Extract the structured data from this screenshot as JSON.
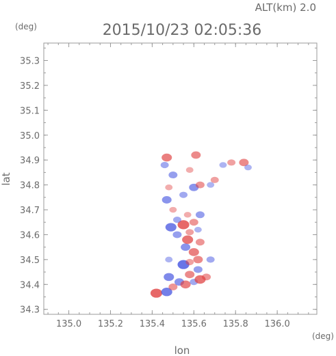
{
  "header": {
    "altitude_label": "ALT(km) 2.0",
    "timestamp": "2015/10/23 02:05:36"
  },
  "chart_data": {
    "type": "scatter",
    "title": "2015/10/23 02:05:36",
    "xlabel": "lon",
    "ylabel": "lat",
    "x_unit": "(deg)",
    "y_unit": "(deg)",
    "xlim": [
      134.88,
      136.19
    ],
    "ylim": [
      34.28,
      35.37
    ],
    "x_ticks": [
      "135.0",
      "135.2",
      "135.4",
      "135.6",
      "135.8",
      "136.0"
    ],
    "y_ticks": [
      "34.3",
      "34.4",
      "34.5",
      "34.6",
      "34.7",
      "34.8",
      "34.9",
      "35.0",
      "35.1",
      "35.2",
      "35.3"
    ],
    "grid": false,
    "colors": {
      "positive": "#e04040",
      "negative": "#4050e0",
      "axis": "#999999",
      "text": "#6a6a6a"
    },
    "series": [
      {
        "values": [
          {
            "lon": 135.42,
            "lat": 34.365,
            "v": 0.9
          },
          {
            "lon": 135.47,
            "lat": 34.37,
            "v": -0.8
          },
          {
            "lon": 135.5,
            "lat": 34.39,
            "v": 0.5
          },
          {
            "lon": 135.53,
            "lat": 34.41,
            "v": -0.6
          },
          {
            "lon": 135.56,
            "lat": 34.4,
            "v": 0.7
          },
          {
            "lon": 135.6,
            "lat": 34.41,
            "v": -0.4
          },
          {
            "lon": 135.63,
            "lat": 34.42,
            "v": 0.8
          },
          {
            "lon": 135.66,
            "lat": 34.43,
            "v": 0.5
          },
          {
            "lon": 135.48,
            "lat": 34.43,
            "v": -0.7
          },
          {
            "lon": 135.58,
            "lat": 34.44,
            "v": 0.6
          },
          {
            "lon": 135.62,
            "lat": 34.46,
            "v": -0.5
          },
          {
            "lon": 135.55,
            "lat": 34.48,
            "v": -0.9
          },
          {
            "lon": 135.58,
            "lat": 34.49,
            "v": 0.4
          },
          {
            "lon": 135.62,
            "lat": 34.5,
            "v": 0.6
          },
          {
            "lon": 135.68,
            "lat": 34.5,
            "v": -0.4
          },
          {
            "lon": 135.48,
            "lat": 34.5,
            "v": -0.3
          },
          {
            "lon": 135.6,
            "lat": 34.53,
            "v": 0.7
          },
          {
            "lon": 135.56,
            "lat": 34.55,
            "v": -0.6
          },
          {
            "lon": 135.63,
            "lat": 34.57,
            "v": 0.5
          },
          {
            "lon": 135.57,
            "lat": 34.58,
            "v": 0.8
          },
          {
            "lon": 135.52,
            "lat": 34.6,
            "v": -0.5
          },
          {
            "lon": 135.58,
            "lat": 34.61,
            "v": 0.4
          },
          {
            "lon": 135.62,
            "lat": 34.62,
            "v": -0.3
          },
          {
            "lon": 135.49,
            "lat": 34.63,
            "v": -0.8
          },
          {
            "lon": 135.55,
            "lat": 34.64,
            "v": 0.9
          },
          {
            "lon": 135.6,
            "lat": 34.65,
            "v": 0.5
          },
          {
            "lon": 135.52,
            "lat": 34.66,
            "v": -0.4
          },
          {
            "lon": 135.57,
            "lat": 34.68,
            "v": 0.3
          },
          {
            "lon": 135.63,
            "lat": 34.68,
            "v": -0.5
          },
          {
            "lon": 135.5,
            "lat": 34.7,
            "v": 0.3
          },
          {
            "lon": 135.47,
            "lat": 34.74,
            "v": -0.6
          },
          {
            "lon": 135.55,
            "lat": 34.76,
            "v": -0.4
          },
          {
            "lon": 135.6,
            "lat": 34.79,
            "v": -0.6
          },
          {
            "lon": 135.63,
            "lat": 34.8,
            "v": 0.5
          },
          {
            "lon": 135.48,
            "lat": 34.79,
            "v": 0.3
          },
          {
            "lon": 135.68,
            "lat": 34.8,
            "v": -0.3
          },
          {
            "lon": 135.7,
            "lat": 34.82,
            "v": 0.4
          },
          {
            "lon": 135.5,
            "lat": 34.84,
            "v": -0.5
          },
          {
            "lon": 135.58,
            "lat": 34.86,
            "v": 0.3
          },
          {
            "lon": 135.74,
            "lat": 34.88,
            "v": -0.3
          },
          {
            "lon": 135.78,
            "lat": 34.89,
            "v": 0.4
          },
          {
            "lon": 135.84,
            "lat": 34.89,
            "v": 0.6
          },
          {
            "lon": 135.86,
            "lat": 34.87,
            "v": -0.3
          },
          {
            "lon": 135.47,
            "lat": 34.91,
            "v": 0.7
          },
          {
            "lon": 135.61,
            "lat": 34.92,
            "v": 0.6
          },
          {
            "lon": 135.46,
            "lat": 34.88,
            "v": -0.4
          }
        ]
      }
    ]
  }
}
